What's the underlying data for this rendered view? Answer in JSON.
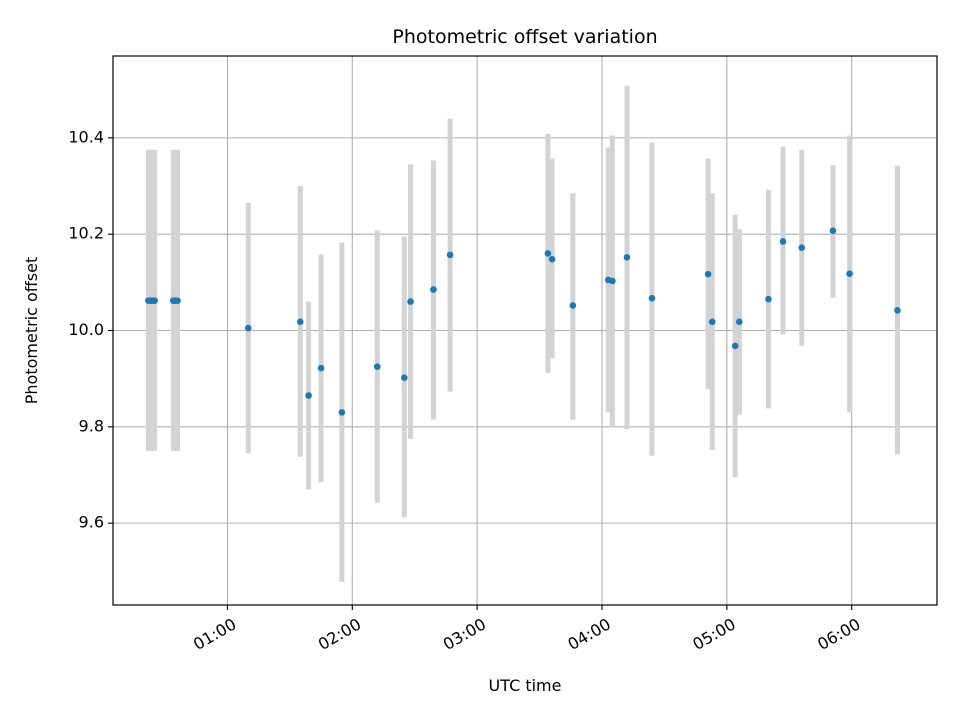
{
  "chart_data": {
    "type": "scatter",
    "title": "Photometric offset variation",
    "xlabel": "UTC time",
    "ylabel": "Photometric offset",
    "xlim": [
      "00:05",
      "06:41"
    ],
    "ylim": [
      9.43,
      10.57
    ],
    "x_ticks": [
      "01:00",
      "02:00",
      "03:00",
      "04:00",
      "05:00",
      "06:00"
    ],
    "y_ticks": [
      9.6,
      9.8,
      10.0,
      10.2,
      10.4
    ],
    "grid": true,
    "colors": {
      "points": "#1f77b4",
      "error_bars": "#d3d3d3"
    },
    "points": [
      {
        "time": "00:22",
        "y": 10.062,
        "yerr_low": 9.75,
        "yerr_high": 10.375
      },
      {
        "time": "00:23",
        "y": 10.062,
        "yerr_low": 9.75,
        "yerr_high": 10.375
      },
      {
        "time": "00:24",
        "y": 10.062,
        "yerr_low": 9.75,
        "yerr_high": 10.375
      },
      {
        "time": "00:25",
        "y": 10.062,
        "yerr_low": 9.75,
        "yerr_high": 10.375
      },
      {
        "time": "00:34",
        "y": 10.062,
        "yerr_low": 9.75,
        "yerr_high": 10.375
      },
      {
        "time": "00:35",
        "y": 10.062,
        "yerr_low": 9.75,
        "yerr_high": 10.375
      },
      {
        "time": "00:36",
        "y": 10.062,
        "yerr_low": 9.75,
        "yerr_high": 10.375
      },
      {
        "time": "01:10",
        "y": 10.005,
        "yerr_low": 9.745,
        "yerr_high": 10.265
      },
      {
        "time": "01:35",
        "y": 10.018,
        "yerr_low": 9.738,
        "yerr_high": 10.3
      },
      {
        "time": "01:39",
        "y": 9.865,
        "yerr_low": 9.67,
        "yerr_high": 10.06
      },
      {
        "time": "01:45",
        "y": 9.922,
        "yerr_low": 9.685,
        "yerr_high": 10.158
      },
      {
        "time": "01:55",
        "y": 9.83,
        "yerr_low": 9.478,
        "yerr_high": 10.183
      },
      {
        "time": "02:12",
        "y": 9.925,
        "yerr_low": 9.642,
        "yerr_high": 10.208
      },
      {
        "time": "02:25",
        "y": 9.902,
        "yerr_low": 9.612,
        "yerr_high": 10.195
      },
      {
        "time": "02:28",
        "y": 10.06,
        "yerr_low": 9.775,
        "yerr_high": 10.345
      },
      {
        "time": "02:39",
        "y": 10.085,
        "yerr_low": 9.815,
        "yerr_high": 10.353
      },
      {
        "time": "02:47",
        "y": 10.157,
        "yerr_low": 9.873,
        "yerr_high": 10.44
      },
      {
        "time": "03:34",
        "y": 10.16,
        "yerr_low": 9.912,
        "yerr_high": 10.408
      },
      {
        "time": "03:36",
        "y": 10.148,
        "yerr_low": 9.942,
        "yerr_high": 10.357
      },
      {
        "time": "03:46",
        "y": 10.052,
        "yerr_low": 9.815,
        "yerr_high": 10.285
      },
      {
        "time": "04:03",
        "y": 10.105,
        "yerr_low": 9.83,
        "yerr_high": 10.38
      },
      {
        "time": "04:05",
        "y": 10.103,
        "yerr_low": 9.8,
        "yerr_high": 10.405
      },
      {
        "time": "04:12",
        "y": 10.152,
        "yerr_low": 9.795,
        "yerr_high": 10.508
      },
      {
        "time": "04:24",
        "y": 10.067,
        "yerr_low": 9.74,
        "yerr_high": 10.39
      },
      {
        "time": "04:51",
        "y": 10.117,
        "yerr_low": 9.878,
        "yerr_high": 10.357
      },
      {
        "time": "04:53",
        "y": 10.018,
        "yerr_low": 9.752,
        "yerr_high": 10.285
      },
      {
        "time": "05:04",
        "y": 9.968,
        "yerr_low": 9.695,
        "yerr_high": 10.24
      },
      {
        "time": "05:06",
        "y": 10.018,
        "yerr_low": 9.825,
        "yerr_high": 10.21
      },
      {
        "time": "05:20",
        "y": 10.065,
        "yerr_low": 9.838,
        "yerr_high": 10.292
      },
      {
        "time": "05:27",
        "y": 10.185,
        "yerr_low": 9.992,
        "yerr_high": 10.382
      },
      {
        "time": "05:36",
        "y": 10.172,
        "yerr_low": 9.968,
        "yerr_high": 10.375
      },
      {
        "time": "05:51",
        "y": 10.207,
        "yerr_low": 10.068,
        "yerr_high": 10.343
      },
      {
        "time": "05:59",
        "y": 10.118,
        "yerr_low": 9.83,
        "yerr_high": 10.405
      },
      {
        "time": "06:22",
        "y": 10.042,
        "yerr_low": 9.743,
        "yerr_high": 10.342
      }
    ]
  }
}
